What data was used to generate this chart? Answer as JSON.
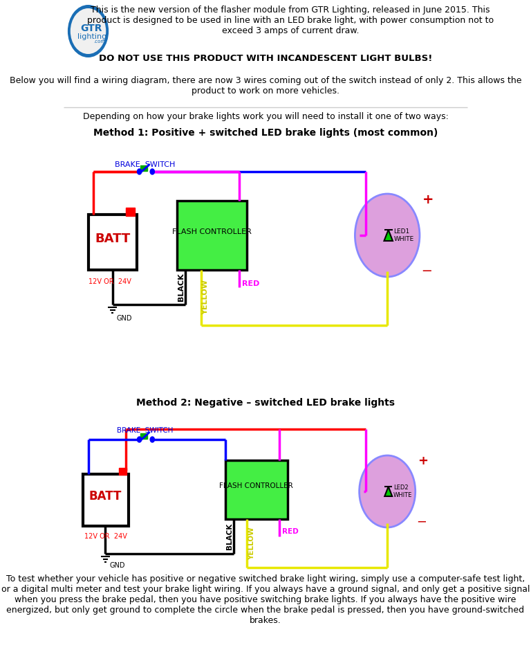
{
  "bg_color": "#ffffff",
  "header_text1": "This is the new version of the flasher module from GTR Lighting, released in June 2015. This\nproduct is designed to be used in line with an LED brake light, with power consumption not to\nexceed 3 amps of current draw.",
  "header_text2": "DO NOT USE THIS PRODUCT WITH INCANDESCENT LIGHT BULBS!",
  "header_text3": "Below you will find a wiring diagram, there are now 3 wires coming out of the switch instead of only 2. This allows the\nproduct to work on more vehicles.",
  "method_intro": "Depending on how your brake lights work you will need to install it one of two ways:",
  "method1_title": "Method 1: Positive + switched LED brake lights (most common)",
  "method2_title": "Method 2: Negative – switched LED brake lights",
  "footer_text": "To test whether your vehicle has positive or negative switched brake light wiring, simply use a computer-safe test light,\nor a digital multi meter and test your brake light wiring. If you always have a ground signal, and only get a positive signal\nwhen you press the brake pedal, then you have positive switching brake lights. If you always have the positive wire\nenergized, but only get ground to complete the circle when the brake pedal is pressed, then you have ground-switched\nbrakes.",
  "red": "#ff0000",
  "magenta": "#ff00ff",
  "yellow": "#ffff00",
  "blue": "#0000ff",
  "green": "#00cc00",
  "black": "#000000",
  "orange": "#ff6600",
  "purple_light": "#dda0dd",
  "dark_red": "#cc0000"
}
